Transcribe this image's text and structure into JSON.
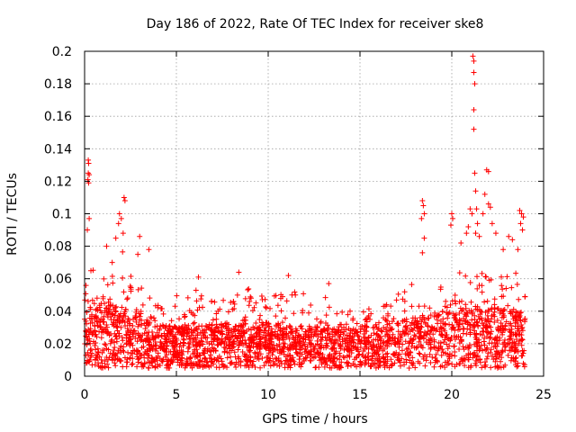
{
  "chart_data": {
    "type": "scatter",
    "title": "Day 186 of 2022, Rate Of TEC Index for receiver ske8",
    "xlabel": "GPS time / hours",
    "ylabel": "ROTI / TECUs",
    "xlim": [
      0,
      25
    ],
    "ylim": [
      0,
      0.2
    ],
    "x_ticks": [
      0,
      5,
      10,
      15,
      20,
      25
    ],
    "x_tick_labels": [
      "0",
      "5",
      "10",
      "15",
      "20",
      "25"
    ],
    "y_ticks": [
      0,
      0.02,
      0.04,
      0.06,
      0.08,
      0.1,
      0.12,
      0.14,
      0.16,
      0.18,
      0.2
    ],
    "y_tick_labels": [
      "0",
      "0.02",
      "0.04",
      "0.06",
      "0.08",
      "0.1",
      "0.12",
      "0.14",
      "0.16",
      "0.18",
      "0.2"
    ],
    "grid": true,
    "marker": "+",
    "color": "#ff0000",
    "x_range_of_data": [
      0,
      24
    ],
    "envelope": [
      {
        "x": 0.0,
        "y": 0.066
      },
      {
        "x": 0.5,
        "y": 0.068
      },
      {
        "x": 1.0,
        "y": 0.074
      },
      {
        "x": 1.5,
        "y": 0.07
      },
      {
        "x": 2.0,
        "y": 0.082
      },
      {
        "x": 2.5,
        "y": 0.07
      },
      {
        "x": 3.0,
        "y": 0.06
      },
      {
        "x": 3.5,
        "y": 0.05
      },
      {
        "x": 4.0,
        "y": 0.046
      },
      {
        "x": 4.5,
        "y": 0.044
      },
      {
        "x": 5.0,
        "y": 0.05
      },
      {
        "x": 5.5,
        "y": 0.048
      },
      {
        "x": 6.0,
        "y": 0.054
      },
      {
        "x": 6.5,
        "y": 0.05
      },
      {
        "x": 7.0,
        "y": 0.046
      },
      {
        "x": 7.5,
        "y": 0.048
      },
      {
        "x": 8.0,
        "y": 0.05
      },
      {
        "x": 8.5,
        "y": 0.054
      },
      {
        "x": 9.0,
        "y": 0.056
      },
      {
        "x": 9.5,
        "y": 0.052
      },
      {
        "x": 10.0,
        "y": 0.05
      },
      {
        "x": 10.5,
        "y": 0.054
      },
      {
        "x": 11.0,
        "y": 0.06
      },
      {
        "x": 11.5,
        "y": 0.056
      },
      {
        "x": 12.0,
        "y": 0.05
      },
      {
        "x": 12.5,
        "y": 0.046
      },
      {
        "x": 13.0,
        "y": 0.05
      },
      {
        "x": 13.5,
        "y": 0.046
      },
      {
        "x": 14.0,
        "y": 0.044
      },
      {
        "x": 14.5,
        "y": 0.04
      },
      {
        "x": 15.0,
        "y": 0.04
      },
      {
        "x": 15.5,
        "y": 0.042
      },
      {
        "x": 16.0,
        "y": 0.044
      },
      {
        "x": 16.5,
        "y": 0.046
      },
      {
        "x": 17.0,
        "y": 0.05
      },
      {
        "x": 17.5,
        "y": 0.054
      },
      {
        "x": 18.0,
        "y": 0.058
      },
      {
        "x": 18.5,
        "y": 0.056
      },
      {
        "x": 19.0,
        "y": 0.054
      },
      {
        "x": 19.5,
        "y": 0.056
      },
      {
        "x": 20.0,
        "y": 0.06
      },
      {
        "x": 20.5,
        "y": 0.066
      },
      {
        "x": 21.0,
        "y": 0.07
      },
      {
        "x": 21.5,
        "y": 0.066
      },
      {
        "x": 22.0,
        "y": 0.062
      },
      {
        "x": 22.5,
        "y": 0.06
      },
      {
        "x": 23.0,
        "y": 0.064
      },
      {
        "x": 23.5,
        "y": 0.066
      },
      {
        "x": 24.0,
        "y": 0.06
      }
    ],
    "baseline": [
      {
        "x": 0.0,
        "y": 0.026
      },
      {
        "x": 2.0,
        "y": 0.024
      },
      {
        "x": 4.0,
        "y": 0.018
      },
      {
        "x": 6.0,
        "y": 0.018
      },
      {
        "x": 8.0,
        "y": 0.019
      },
      {
        "x": 10.0,
        "y": 0.019
      },
      {
        "x": 12.0,
        "y": 0.018
      },
      {
        "x": 14.0,
        "y": 0.017
      },
      {
        "x": 16.0,
        "y": 0.018
      },
      {
        "x": 18.0,
        "y": 0.021
      },
      {
        "x": 20.0,
        "y": 0.023
      },
      {
        "x": 22.0,
        "y": 0.024
      },
      {
        "x": 24.0,
        "y": 0.022
      }
    ],
    "outliers": [
      {
        "x": 0.2,
        "y": 0.133
      },
      {
        "x": 0.22,
        "y": 0.131
      },
      {
        "x": 0.2,
        "y": 0.125
      },
      {
        "x": 0.25,
        "y": 0.124
      },
      {
        "x": 0.18,
        "y": 0.121
      },
      {
        "x": 0.22,
        "y": 0.119
      },
      {
        "x": 0.25,
        "y": 0.097
      },
      {
        "x": 0.15,
        "y": 0.09
      },
      {
        "x": 2.15,
        "y": 0.11
      },
      {
        "x": 2.2,
        "y": 0.108
      },
      {
        "x": 1.9,
        "y": 0.1
      },
      {
        "x": 2.0,
        "y": 0.097
      },
      {
        "x": 1.85,
        "y": 0.094
      },
      {
        "x": 1.7,
        "y": 0.085
      },
      {
        "x": 2.1,
        "y": 0.088
      },
      {
        "x": 3.0,
        "y": 0.086
      },
      {
        "x": 3.5,
        "y": 0.078
      },
      {
        "x": 2.9,
        "y": 0.075
      },
      {
        "x": 1.2,
        "y": 0.08
      },
      {
        "x": 6.2,
        "y": 0.061
      },
      {
        "x": 8.4,
        "y": 0.064
      },
      {
        "x": 11.1,
        "y": 0.062
      },
      {
        "x": 13.3,
        "y": 0.057
      },
      {
        "x": 18.4,
        "y": 0.108
      },
      {
        "x": 18.45,
        "y": 0.105
      },
      {
        "x": 18.5,
        "y": 0.1
      },
      {
        "x": 18.35,
        "y": 0.097
      },
      {
        "x": 18.5,
        "y": 0.085
      },
      {
        "x": 18.4,
        "y": 0.076
      },
      {
        "x": 20.0,
        "y": 0.1
      },
      {
        "x": 20.05,
        "y": 0.097
      },
      {
        "x": 19.95,
        "y": 0.093
      },
      {
        "x": 20.5,
        "y": 0.082
      },
      {
        "x": 20.8,
        "y": 0.088
      },
      {
        "x": 21.15,
        "y": 0.197
      },
      {
        "x": 21.2,
        "y": 0.194
      },
      {
        "x": 21.2,
        "y": 0.187
      },
      {
        "x": 21.25,
        "y": 0.18
      },
      {
        "x": 21.2,
        "y": 0.164
      },
      {
        "x": 21.2,
        "y": 0.152
      },
      {
        "x": 21.25,
        "y": 0.125
      },
      {
        "x": 21.3,
        "y": 0.114
      },
      {
        "x": 21.0,
        "y": 0.103
      },
      {
        "x": 21.35,
        "y": 0.103
      },
      {
        "x": 21.1,
        "y": 0.1
      },
      {
        "x": 21.4,
        "y": 0.094
      },
      {
        "x": 20.9,
        "y": 0.092
      },
      {
        "x": 21.3,
        "y": 0.088
      },
      {
        "x": 21.5,
        "y": 0.086
      },
      {
        "x": 21.9,
        "y": 0.127
      },
      {
        "x": 22.0,
        "y": 0.126
      },
      {
        "x": 21.8,
        "y": 0.112
      },
      {
        "x": 22.0,
        "y": 0.106
      },
      {
        "x": 22.1,
        "y": 0.104
      },
      {
        "x": 21.7,
        "y": 0.1
      },
      {
        "x": 22.2,
        "y": 0.094
      },
      {
        "x": 22.4,
        "y": 0.088
      },
      {
        "x": 23.1,
        "y": 0.086
      },
      {
        "x": 23.3,
        "y": 0.084
      },
      {
        "x": 23.7,
        "y": 0.102
      },
      {
        "x": 23.8,
        "y": 0.1
      },
      {
        "x": 23.9,
        "y": 0.098
      },
      {
        "x": 23.75,
        "y": 0.094
      },
      {
        "x": 23.85,
        "y": 0.09
      },
      {
        "x": 23.6,
        "y": 0.078
      },
      {
        "x": 22.8,
        "y": 0.078
      }
    ]
  }
}
